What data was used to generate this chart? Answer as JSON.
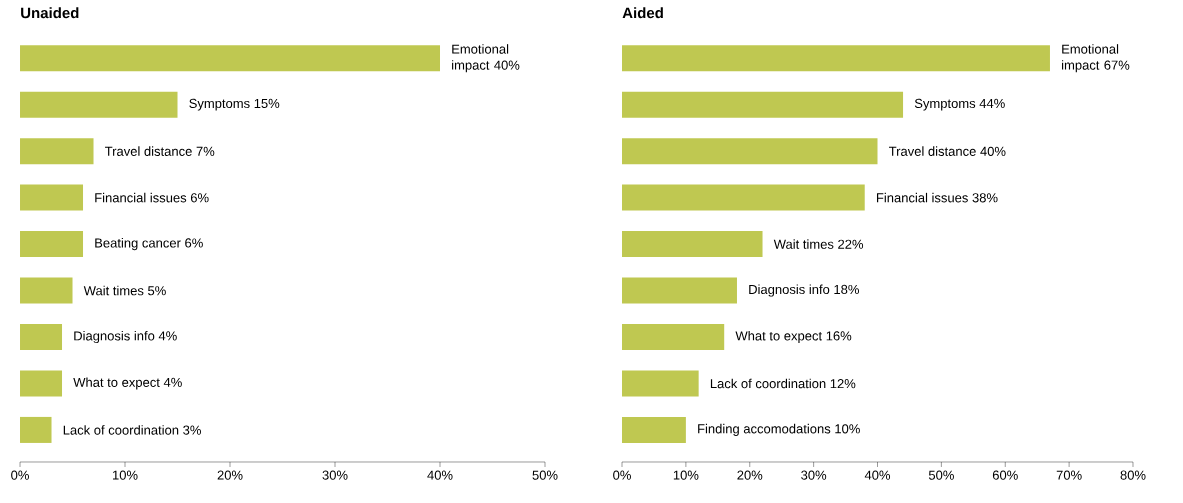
{
  "chart_data": [
    {
      "type": "bar",
      "orientation": "horizontal",
      "title": "Unaided",
      "categories": [
        "Emotional impact 40%",
        "Symptoms 15%",
        "Travel distance 7%",
        "Financial issues 6%",
        "Beating cancer 6%",
        "Wait times 5%",
        "Diagnosis info 4%",
        "What to expect 4%",
        "Lack of coordination 3%"
      ],
      "values": [
        40,
        15,
        7,
        6,
        6,
        5,
        4,
        4,
        3
      ],
      "color": "#bfc851",
      "xlim": [
        0,
        50
      ],
      "xticks": [
        {
          "value": 0,
          "label": "0%"
        },
        {
          "value": 10,
          "label": "10%"
        },
        {
          "value": 20,
          "label": "20%"
        },
        {
          "value": 30,
          "label": "30%"
        },
        {
          "value": 40,
          "label": "40%"
        },
        {
          "value": 50,
          "label": "50%"
        }
      ],
      "tick_labels": "x",
      "grid": false
    },
    {
      "type": "bar",
      "orientation": "horizontal",
      "title": "Aided",
      "categories": [
        "Emotional impact 67%",
        "Symptoms 44%",
        "Travel distance 40%",
        "Financial issues 38%",
        "Wait times 22%",
        "Diagnosis info 18%",
        "What to expect 16%",
        "Lack of coordination 12%",
        "Finding accomodations 10%"
      ],
      "values": [
        67,
        44,
        40,
        38,
        22,
        18,
        16,
        12,
        10
      ],
      "color": "#bfc851",
      "xlim": [
        0,
        80
      ],
      "xticks": [
        {
          "value": 0,
          "label": "0%"
        },
        {
          "value": 10,
          "label": "10%"
        },
        {
          "value": 20,
          "label": "20%"
        },
        {
          "value": 30,
          "label": "30%"
        },
        {
          "value": 40,
          "label": "40%"
        },
        {
          "value": 50,
          "label": "50%"
        },
        {
          "value": 60,
          "label": "60%"
        },
        {
          "value": 70,
          "label": "70%"
        },
        {
          "value": 80,
          "label": "80%"
        }
      ],
      "tick_labels": "x",
      "grid": false
    }
  ]
}
